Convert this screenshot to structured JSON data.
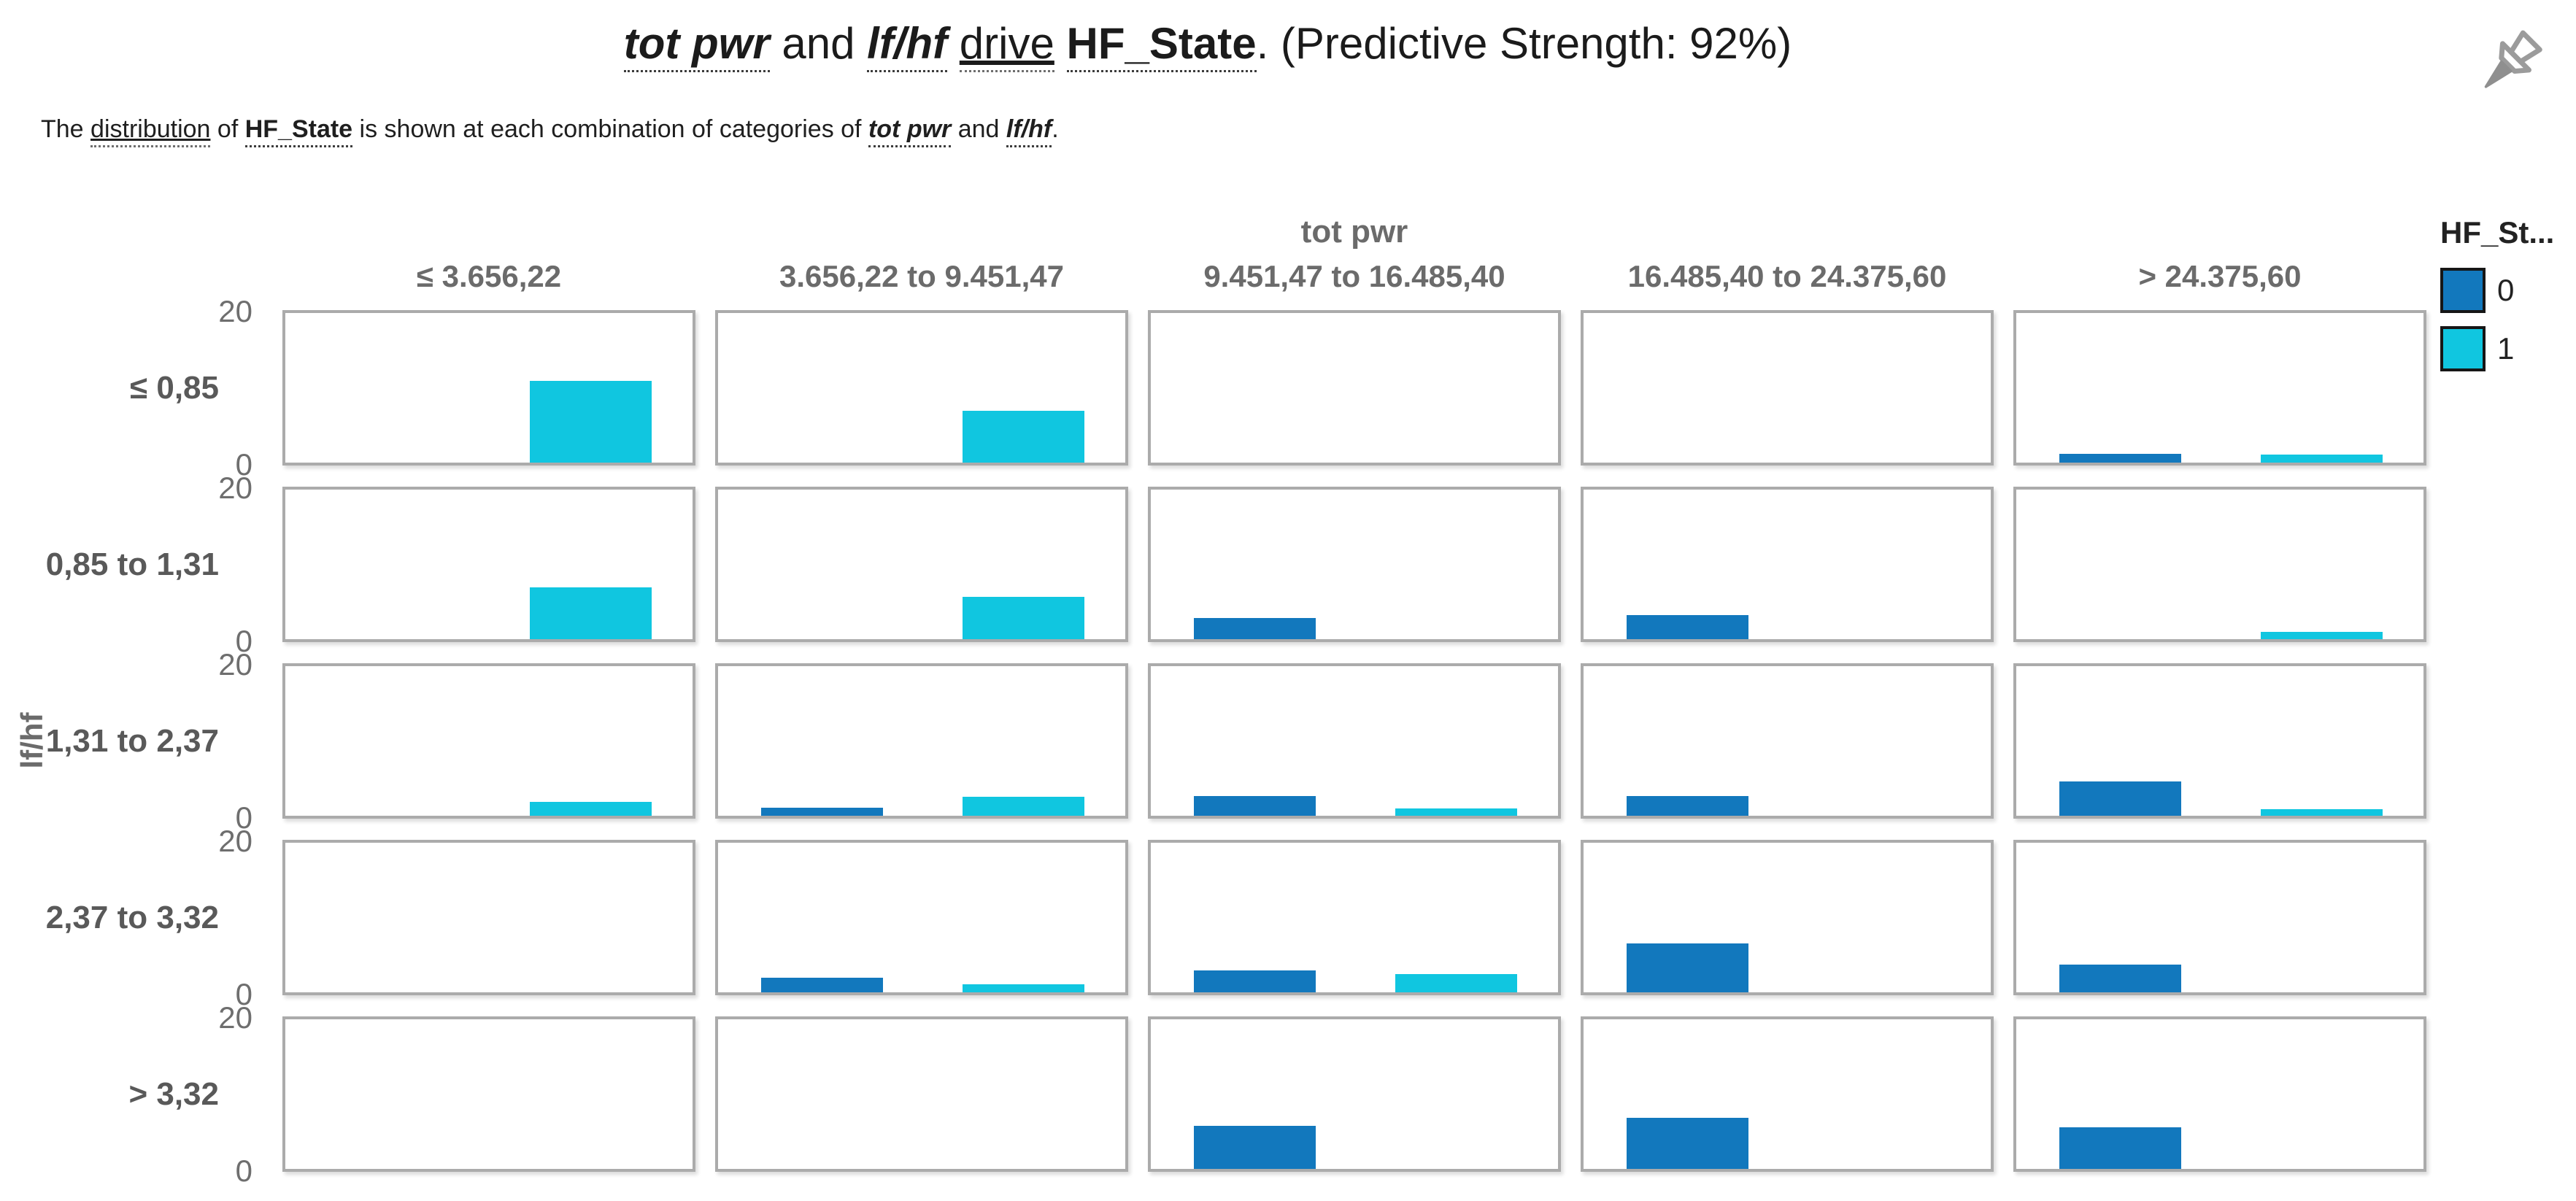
{
  "header": {
    "title_segments": [
      {
        "text": "tot pwr",
        "style": "term"
      },
      {
        "text": " and ",
        "style": "plain"
      },
      {
        "text": "lf/hf",
        "style": "term"
      },
      {
        "text": " ",
        "style": "plain"
      },
      {
        "text": "drive",
        "style": "link"
      },
      {
        "text": " ",
        "style": "plain"
      },
      {
        "text": "HF_State",
        "style": "field"
      },
      {
        "text": ". (Predictive Strength: 92%)",
        "style": "plain"
      }
    ],
    "subtitle_segments": [
      {
        "text": "The ",
        "style": "plain"
      },
      {
        "text": "distribution",
        "style": "link"
      },
      {
        "text": " of ",
        "style": "plain"
      },
      {
        "text": "HF_State",
        "style": "field"
      },
      {
        "text": " is shown at each combination of categories of ",
        "style": "plain"
      },
      {
        "text": "tot pwr",
        "style": "term"
      },
      {
        "text": " and ",
        "style": "plain"
      },
      {
        "text": "lf/hf",
        "style": "term"
      },
      {
        "text": ".",
        "style": "plain"
      }
    ]
  },
  "legend": {
    "title": "HF_St...",
    "items": [
      {
        "label": "0",
        "color": "#1278BD"
      },
      {
        "label": "1",
        "color": "#10C6E0"
      }
    ]
  },
  "chart_data": {
    "type": "bar",
    "layout": "facet-grid",
    "title": "tot pwr and lf/hf drive HF_State. (Predictive Strength: 92%)",
    "subtitle": "The distribution of HF_State is shown at each combination of categories of tot pwr and lf/hf.",
    "facet_x": {
      "title": "tot pwr",
      "categories": [
        "≤ 3.656,22",
        "3.656,22 to 9.451,47",
        "9.451,47 to 16.485,40",
        "16.485,40 to 24.375,60",
        "> 24.375,60"
      ]
    },
    "facet_y": {
      "title": "lf/hf",
      "categories": [
        "≤ 0,85",
        "0,85 to 1,31",
        "1,31 to 2,37",
        "2,37 to 3,32",
        "> 3,32"
      ]
    },
    "series": [
      {
        "name": "0",
        "color": "#1278BD"
      },
      {
        "name": "1",
        "color": "#10C6E0"
      }
    ],
    "ylim": [
      0,
      20
    ],
    "yticks": [
      "20",
      "0"
    ],
    "grid": "off",
    "legend_position": "top-right",
    "values": [
      [
        [
          0,
          10.9
        ],
        [
          0,
          6.9
        ],
        [
          0,
          0
        ],
        [
          0,
          0
        ],
        [
          1.2,
          1.1
        ]
      ],
      [
        [
          0,
          6.9
        ],
        [
          0,
          5.7
        ],
        [
          2.8,
          0
        ],
        [
          3.2,
          0
        ],
        [
          0,
          1.0
        ]
      ],
      [
        [
          0,
          1.9
        ],
        [
          1.1,
          2.5
        ],
        [
          2.6,
          1.0
        ],
        [
          2.6,
          0
        ],
        [
          4.6,
          0.9
        ]
      ],
      [
        [
          0,
          0
        ],
        [
          2.0,
          1.1
        ],
        [
          2.9,
          2.4
        ],
        [
          6.5,
          0
        ],
        [
          3.7,
          0
        ]
      ],
      [
        [
          0,
          0
        ],
        [
          0,
          0
        ],
        [
          5.8,
          0
        ],
        [
          6.8,
          0
        ],
        [
          5.6,
          0
        ]
      ]
    ]
  }
}
